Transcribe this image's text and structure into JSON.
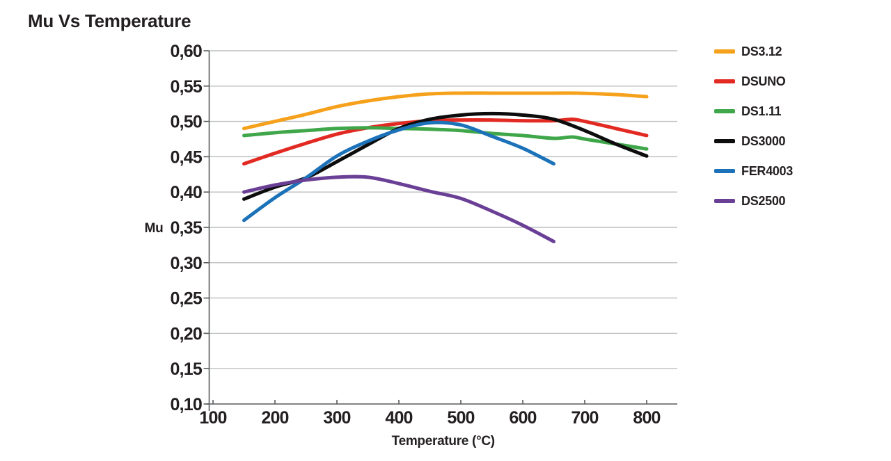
{
  "chart_data": {
    "type": "line",
    "title": "Mu Vs Temperature",
    "xlabel": "Temperature (°C)",
    "ylabel": "Mu",
    "xlim": [
      100,
      800
    ],
    "ylim": [
      0.1,
      0.6
    ],
    "x_ticks": [
      100,
      200,
      300,
      400,
      500,
      600,
      700,
      800
    ],
    "y_tick_values": [
      0.6,
      0.55,
      0.5,
      0.45,
      0.4,
      0.35,
      0.3,
      0.25,
      0.2,
      0.15,
      0.1
    ],
    "y_tick_labels": [
      "0,60",
      "0,55",
      "0,50",
      "0,45",
      "0,40",
      "0,35",
      "0,30",
      "0,25",
      "0,20",
      "0,15",
      "0,10"
    ],
    "grid": true,
    "legend_position": "right",
    "series": [
      {
        "name": "DS3.12",
        "color": "#F5A11C",
        "points": [
          [
            150,
            0.49
          ],
          [
            200,
            0.5
          ],
          [
            250,
            0.51
          ],
          [
            300,
            0.521
          ],
          [
            350,
            0.529
          ],
          [
            400,
            0.535
          ],
          [
            450,
            0.539
          ],
          [
            500,
            0.54
          ],
          [
            550,
            0.54
          ],
          [
            600,
            0.54
          ],
          [
            650,
            0.54
          ],
          [
            690,
            0.54
          ],
          [
            750,
            0.538
          ],
          [
            800,
            0.535
          ]
        ]
      },
      {
        "name": "DSUNO",
        "color": "#E22922",
        "points": [
          [
            150,
            0.44
          ],
          [
            200,
            0.455
          ],
          [
            250,
            0.469
          ],
          [
            300,
            0.482
          ],
          [
            350,
            0.491
          ],
          [
            400,
            0.497
          ],
          [
            450,
            0.501
          ],
          [
            500,
            0.502
          ],
          [
            550,
            0.502
          ],
          [
            600,
            0.501
          ],
          [
            650,
            0.501
          ],
          [
            680,
            0.503
          ],
          [
            700,
            0.5
          ],
          [
            750,
            0.49
          ],
          [
            800,
            0.48
          ]
        ]
      },
      {
        "name": "DS1.11",
        "color": "#3FA74A",
        "points": [
          [
            150,
            0.48
          ],
          [
            200,
            0.484
          ],
          [
            250,
            0.487
          ],
          [
            300,
            0.49
          ],
          [
            350,
            0.491
          ],
          [
            400,
            0.49
          ],
          [
            450,
            0.489
          ],
          [
            500,
            0.487
          ],
          [
            550,
            0.483
          ],
          [
            600,
            0.48
          ],
          [
            650,
            0.476
          ],
          [
            680,
            0.478
          ],
          [
            700,
            0.475
          ],
          [
            750,
            0.468
          ],
          [
            800,
            0.461
          ]
        ]
      },
      {
        "name": "DS3000",
        "color": "#0D0D0D",
        "points": [
          [
            150,
            0.39
          ],
          [
            200,
            0.407
          ],
          [
            250,
            0.42
          ],
          [
            300,
            0.443
          ],
          [
            350,
            0.467
          ],
          [
            400,
            0.49
          ],
          [
            450,
            0.503
          ],
          [
            500,
            0.509
          ],
          [
            550,
            0.511
          ],
          [
            600,
            0.509
          ],
          [
            650,
            0.503
          ],
          [
            700,
            0.487
          ],
          [
            750,
            0.468
          ],
          [
            800,
            0.451
          ]
        ]
      },
      {
        "name": "FER4003",
        "color": "#1C72B9",
        "points": [
          [
            150,
            0.36
          ],
          [
            200,
            0.392
          ],
          [
            250,
            0.42
          ],
          [
            300,
            0.451
          ],
          [
            350,
            0.472
          ],
          [
            400,
            0.488
          ],
          [
            450,
            0.498
          ],
          [
            500,
            0.495
          ],
          [
            550,
            0.479
          ],
          [
            600,
            0.462
          ],
          [
            650,
            0.44
          ]
        ]
      },
      {
        "name": "DS2500",
        "color": "#6A3F96",
        "points": [
          [
            150,
            0.4
          ],
          [
            200,
            0.41
          ],
          [
            250,
            0.417
          ],
          [
            300,
            0.421
          ],
          [
            350,
            0.421
          ],
          [
            400,
            0.412
          ],
          [
            450,
            0.401
          ],
          [
            500,
            0.391
          ],
          [
            550,
            0.373
          ],
          [
            600,
            0.353
          ],
          [
            650,
            0.33
          ]
        ]
      }
    ],
    "style": {
      "grid_color": "#BCBEC0",
      "axis_color": "#595A5C",
      "text_color": "#231F20",
      "background": "#FFFFFF",
      "line_width": 5
    }
  }
}
